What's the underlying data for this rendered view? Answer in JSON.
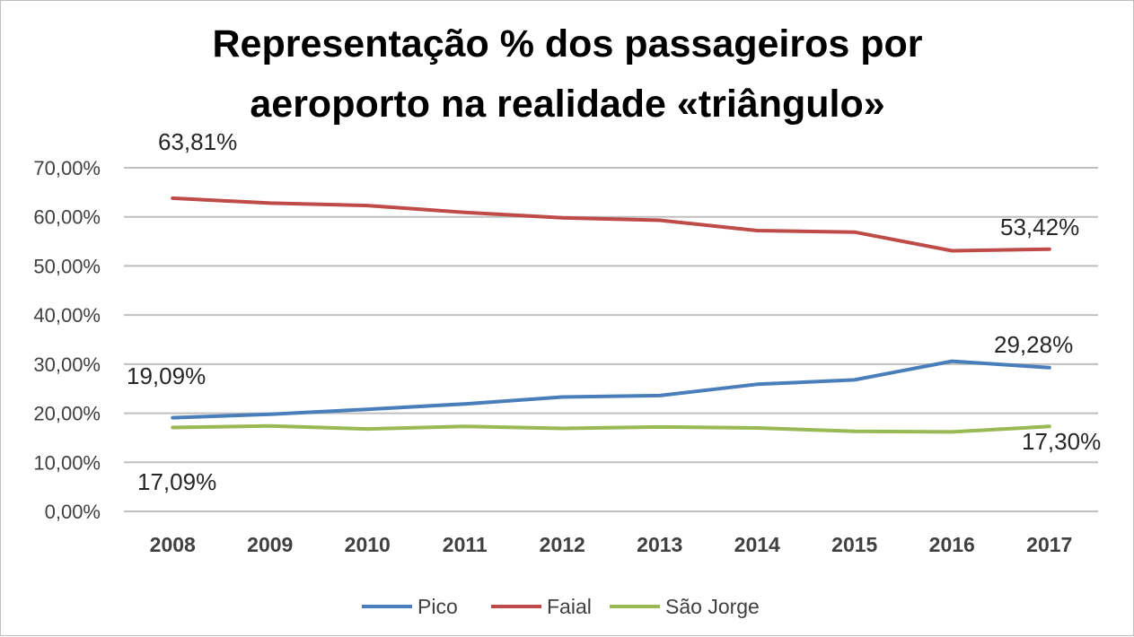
{
  "chart_data": {
    "type": "line",
    "title_lines": [
      "Representação % dos passageiros por",
      "aeroporto na realidade «triângulo»"
    ],
    "categories": [
      "2008",
      "2009",
      "2010",
      "2011",
      "2012",
      "2013",
      "2014",
      "2015",
      "2016",
      "2017"
    ],
    "y_ticks": [
      "0,00%",
      "10,00%",
      "20,00%",
      "30,00%",
      "40,00%",
      "50,00%",
      "60,00%",
      "70,00%"
    ],
    "ylim": [
      0,
      70
    ],
    "grid": true,
    "legend_position": "bottom",
    "series": [
      {
        "name": "Pico",
        "color": "#4a7ebb",
        "values": [
          19.09,
          19.8,
          20.8,
          21.9,
          23.3,
          23.6,
          25.9,
          26.8,
          30.6,
          29.28
        ]
      },
      {
        "name": "Faial",
        "color": "#be4b48",
        "values": [
          63.81,
          62.8,
          62.3,
          60.9,
          59.8,
          59.3,
          57.2,
          56.9,
          53.1,
          53.42
        ]
      },
      {
        "name": "São Jorge",
        "color": "#98b954",
        "values": [
          17.09,
          17.4,
          16.8,
          17.3,
          16.9,
          17.2,
          17.0,
          16.3,
          16.2,
          17.3
        ]
      }
    ],
    "annotations": [
      {
        "text": "63,81%",
        "series": "Faial",
        "index": 0
      },
      {
        "text": "53,42%",
        "series": "Faial",
        "index": 9
      },
      {
        "text": "29,28%",
        "series": "Pico",
        "index": 9
      },
      {
        "text": "19,09%",
        "series": "Pico",
        "index": 0
      },
      {
        "text": "17,30%",
        "series": "São Jorge",
        "index": 9
      },
      {
        "text": "17,09%",
        "series": "São Jorge",
        "index": 0
      }
    ]
  }
}
